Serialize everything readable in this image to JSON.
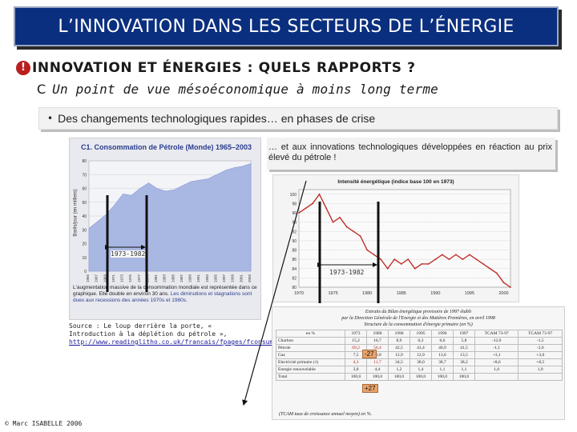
{
  "title": "L’INNOVATION DANS LES SECTEURS DE L’ÉNERGIE",
  "heading1": {
    "bullet": "!",
    "text": "INNOVATION ET ÉNERGIES : QUELS RAPPORTS ?"
  },
  "heading2": {
    "bullet": "C",
    "text": "Un point de vue mésoéconomique à moins long terme"
  },
  "bullet3": {
    "bullet": "•",
    "text": "Des changements technologiques rapides… en phases de crise"
  },
  "caption_right": "… et aux innovations technologiques développées en réaction au prix élevé du pétrole !",
  "label_1973_1982": "1973-1982",
  "chart_data": [
    {
      "type": "area",
      "title": "C1. Consommation de Pétrole (Monde) 1965–2003",
      "ylabel": "Barils/jour (en milliers)",
      "y_ticks": [
        "80",
        "70",
        "60",
        "50",
        "40",
        "30",
        "20",
        "10",
        "0"
      ],
      "x": [
        1965,
        1967,
        1969,
        1971,
        1973,
        1975,
        1977,
        1979,
        1981,
        1983,
        1985,
        1987,
        1989,
        1991,
        1993,
        1995,
        1997,
        1999,
        2001,
        2003
      ],
      "x_tick_labels": [
        "1965",
        "1967",
        "1969",
        "1971",
        "1973",
        "1975",
        "1977",
        "1979",
        "1981",
        "1983",
        "1985",
        "1987",
        "1989",
        "1991",
        "1993",
        "1995",
        "1997",
        "1999",
        "2001",
        "2003"
      ],
      "values": [
        31,
        36,
        41,
        48,
        56,
        55,
        60,
        64,
        60,
        58,
        59,
        62,
        65,
        66,
        67,
        70,
        73,
        75,
        76,
        78
      ],
      "ylim": [
        0,
        80
      ],
      "note_parts": [
        "L'augmentation massive de la consommation mondiale est représentée dans ce graphique. Elle double en environ 30 ans. ",
        "Les diminutions et stagnations sont dues aux recessions des années 1970s et 1980s."
      ],
      "source": "Source : Le loup derrière la porte, « Introduction à la déplétion du pétrole »,",
      "source_link": "http://www.readinglitho.co.uk/francais/fpages/fconsumption.html"
    },
    {
      "type": "line",
      "title": "Intensité énergétique (indice base 100 en 1973)",
      "y_ticks": [
        "100",
        "98",
        "96",
        "94",
        "92",
        "90",
        "88",
        "86",
        "84",
        "82",
        "80"
      ],
      "x_tick_labels": [
        "1970",
        "1975",
        "1980",
        "1985",
        "1990",
        "1995",
        "2000"
      ],
      "x": [
        1970,
        1971,
        1972,
        1973,
        1974,
        1975,
        1976,
        1977,
        1978,
        1979,
        1980,
        1981,
        1982,
        1983,
        1984,
        1985,
        1986,
        1987,
        1988,
        1989,
        1990,
        1991,
        1992,
        1993,
        1994,
        1995,
        1996,
        1997,
        1998,
        1999,
        2000,
        2001
      ],
      "values": [
        96,
        97,
        98,
        100,
        97,
        94,
        95,
        93,
        92,
        91,
        88,
        87,
        86,
        84,
        86,
        85,
        86,
        84,
        85,
        85,
        86,
        87,
        86,
        87,
        86,
        87,
        86,
        85,
        84,
        83,
        81,
        80
      ],
      "ylim": [
        80,
        101
      ]
    }
  ],
  "table": {
    "caption_lines": [
      "Extraits du Bilan énergétique provisoire de 1997 établi",
      "par la Direction Générale de l'Energie et des Matières Premières, en avril 1998",
      "Structure de la consommation d'énergie primaire (en %)"
    ],
    "header": [
      "en %",
      "1973",
      "1980",
      "1990",
      "1995",
      "1996",
      "1997",
      "TCAM 73-97",
      "TCAM 73-97"
    ],
    "rows": [
      [
        "Charbon",
        "15,2",
        "16,7",
        "8,9",
        "6,3",
        "6,6",
        "5,8",
        "-12,0",
        "-1,5"
      ],
      [
        "Pétrole",
        "69,2",
        "56,4",
        "42,5",
        "41,4",
        "40,9",
        "41,5",
        "-1,1",
        "-2,0"
      ],
      [
        "Gaz",
        "7,5",
        "10,8",
        "12,9",
        "12,9",
        "13,6",
        "13,5",
        "+3,1",
        "+3,6"
      ],
      [
        "Electricité primaire (1)",
        "4,3",
        "11,7",
        "34,5",
        "38,0",
        "38,7",
        "38,2",
        "+8,6",
        "+8,5"
      ],
      [
        "Energie renouvelable",
        "3,8",
        "4,4",
        "1,2",
        "1,4",
        "1,1",
        "1,1",
        "1,0",
        "1,0"
      ],
      [
        "Total",
        "100,0",
        "100,0",
        "100,0",
        "100,0",
        "100,0",
        "100,0",
        "",
        ""
      ]
    ],
    "badges": [
      "-27",
      "+27"
    ],
    "footer": "(TCAM taux de croissance annuel moyen) en %."
  },
  "copyright": "© Marc ISABELLE 2006"
}
